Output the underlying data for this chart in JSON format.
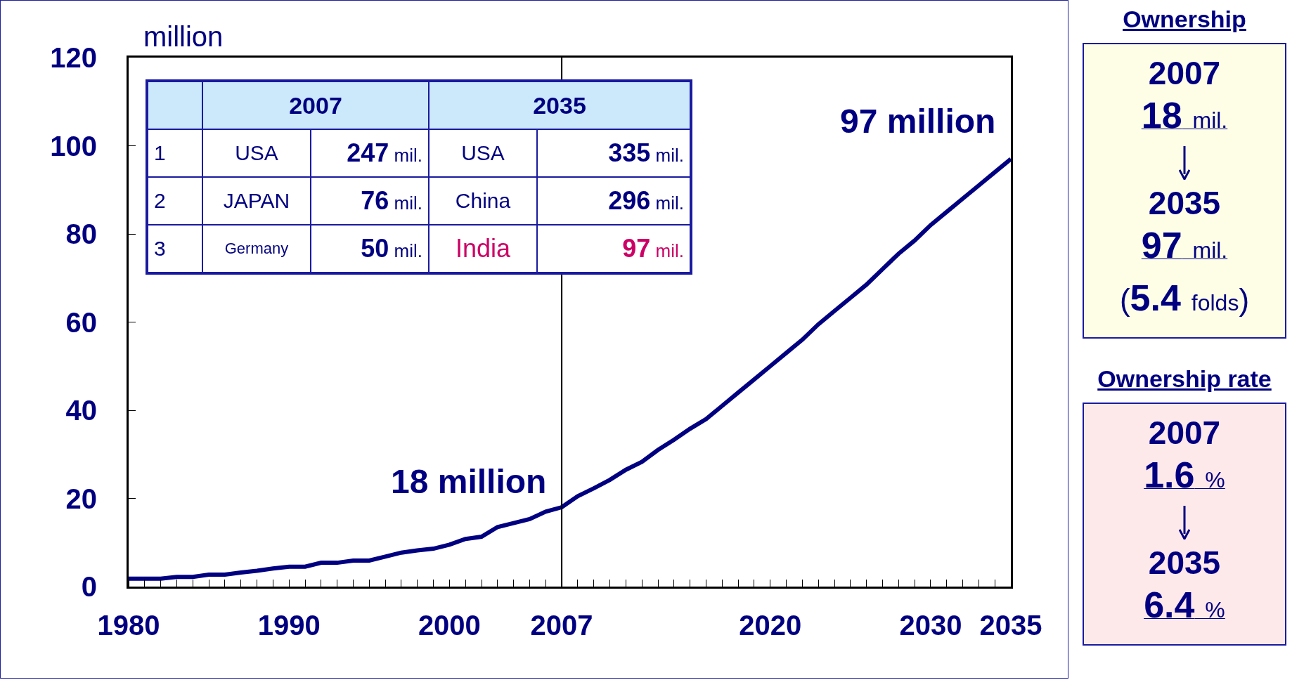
{
  "chart_data": [
    {
      "type": "line",
      "ylabel": "million",
      "color": "#000080",
      "marker": "none",
      "line_style": "solid",
      "grid": false,
      "legend": false,
      "x": [
        1980,
        1982,
        1983,
        1984,
        1985,
        1986,
        1987,
        1988,
        1989,
        1990,
        1991,
        1992,
        1993,
        1994,
        1995,
        1996,
        1997,
        1998,
        1999,
        2000,
        2001,
        2002,
        2003,
        2004,
        2005,
        2006,
        2007,
        2008,
        2009,
        2010,
        2011,
        2012,
        2013,
        2014,
        2015,
        2016,
        2017,
        2018,
        2019,
        2020,
        2021,
        2022,
        2023,
        2024,
        2025,
        2026,
        2027,
        2028,
        2029,
        2030,
        2031,
        2032,
        2033,
        2034,
        2035
      ],
      "values": [
        1.8,
        1.8,
        2.2,
        2.2,
        2.7,
        2.7,
        3.2,
        3.6,
        4.1,
        4.5,
        4.5,
        5.4,
        5.4,
        5.9,
        5.9,
        6.8,
        7.7,
        8.2,
        8.6,
        9.5,
        10.8,
        11.3,
        13.5,
        14.4,
        15.3,
        17,
        18,
        20.5,
        22.3,
        24.2,
        26.5,
        28.3,
        31,
        33.3,
        35.8,
        38,
        41,
        44,
        47,
        50,
        53,
        56,
        59.5,
        62.5,
        65.5,
        68.5,
        72,
        75.5,
        78.5,
        82,
        85,
        88,
        91,
        94,
        97
      ],
      "xlim": [
        1980,
        2035
      ],
      "ylim": [
        0,
        120
      ],
      "xticks": [
        1980,
        1990,
        2000,
        2007,
        2020,
        2030,
        2035
      ],
      "yticks": [
        0,
        20,
        40,
        60,
        80,
        100,
        120
      ],
      "ref_lines": [
        {
          "axis": "x",
          "value": 2007,
          "color": "#000000"
        }
      ],
      "annotations": [
        {
          "text": "18 million",
          "x": 2007,
          "y": 18
        },
        {
          "text": "97 million",
          "x": 2035,
          "y": 97
        }
      ]
    },
    {
      "type": "other",
      "annotations": [
        "2007",
        "2035",
        "1",
        "USA",
        "247 mil.",
        "USA",
        "335 mil.",
        "2",
        "JAPAN",
        "76 mil.",
        "China",
        "296 mil.",
        "3",
        "Germany",
        "50 mil.",
        "India",
        "97 mil."
      ]
    },
    {
      "type": "other",
      "title": "Ownership",
      "annotations": [
        "2007",
        "18 mil.",
        "2035",
        "97 mil.",
        "(5.4 folds)"
      ]
    },
    {
      "type": "other",
      "title": "Ownership rate",
      "annotations": [
        "2007",
        "1.6%",
        "2035",
        "6.4%"
      ]
    }
  ]
}
